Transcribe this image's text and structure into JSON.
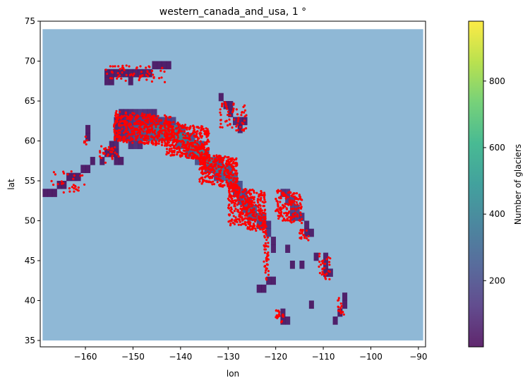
{
  "chart_data": {
    "type": "heatmap",
    "title": "western_canada_and_usa, 1 °",
    "xlabel": "lon",
    "ylabel": "lat",
    "xlim": [
      -169.5,
      -88.5
    ],
    "ylim": [
      34.2,
      75
    ],
    "xticks": [
      -160,
      -150,
      -140,
      -130,
      -120,
      -110,
      -100,
      -90
    ],
    "xtick_labels": [
      "−160",
      "−150",
      "−140",
      "−130",
      "−120",
      "−110",
      "−100",
      "−90"
    ],
    "yticks": [
      35,
      40,
      45,
      50,
      55,
      60,
      65,
      70,
      75
    ],
    "ytick_labels": [
      "35",
      "40",
      "45",
      "50",
      "55",
      "60",
      "65",
      "70",
      "75"
    ],
    "region_extent": {
      "lon": [
        -169,
        -89
      ],
      "lat": [
        35,
        74
      ]
    },
    "background_color": "#8fb8d6",
    "colorbar": {
      "label": "Number of glaciers",
      "range": [
        1,
        980
      ],
      "ticks": [
        200,
        400,
        600,
        800
      ],
      "tick_labels": [
        "200",
        "400",
        "600",
        "800"
      ],
      "colormap": [
        "#440154",
        "#472d7b",
        "#3b528b",
        "#2c728e",
        "#21918c",
        "#28ae80",
        "#5ec962",
        "#addc30",
        "#fde725"
      ]
    },
    "cells_description": "1-degree grid cells containing glaciers, colored by glacier count",
    "cells": [
      [
        -169,
        53,
        8
      ],
      [
        -168,
        53,
        8
      ],
      [
        -167,
        53,
        8
      ],
      [
        -166,
        54,
        8
      ],
      [
        -165,
        54,
        8
      ],
      [
        -164,
        55,
        10
      ],
      [
        -163,
        55,
        10
      ],
      [
        -162,
        55,
        10
      ],
      [
        -161,
        56,
        12
      ],
      [
        -160,
        56,
        12
      ],
      [
        -159,
        57,
        12
      ],
      [
        -160,
        60,
        10
      ],
      [
        -160,
        61,
        10
      ],
      [
        -157,
        57,
        15
      ],
      [
        -156,
        58,
        20
      ],
      [
        -155,
        58,
        25
      ],
      [
        -155,
        59,
        20
      ],
      [
        -154,
        57,
        15
      ],
      [
        -154,
        58,
        30
      ],
      [
        -153,
        57,
        10
      ],
      [
        -156,
        67,
        15
      ],
      [
        -155,
        67,
        15
      ],
      [
        -155,
        68,
        12
      ],
      [
        -154,
        68,
        12
      ],
      [
        -153,
        68,
        12
      ],
      [
        -152,
        68,
        12
      ],
      [
        -151,
        68,
        15
      ],
      [
        -150,
        68,
        20
      ],
      [
        -149,
        68,
        20
      ],
      [
        -148,
        68,
        25
      ],
      [
        -147,
        68,
        20
      ],
      [
        -146,
        69,
        15
      ],
      [
        -145,
        69,
        15
      ],
      [
        -144,
        69,
        15
      ],
      [
        -143,
        69,
        10
      ],
      [
        -151,
        67,
        8
      ],
      [
        -156,
        68,
        10
      ],
      [
        -154,
        59,
        40
      ],
      [
        -154,
        60,
        60
      ],
      [
        -154,
        61,
        50
      ],
      [
        -154,
        62,
        30
      ],
      [
        -153,
        60,
        70
      ],
      [
        -153,
        61,
        80
      ],
      [
        -153,
        62,
        60
      ],
      [
        -153,
        63,
        40
      ],
      [
        -152,
        60,
        90
      ],
      [
        -152,
        61,
        100
      ],
      [
        -152,
        62,
        80
      ],
      [
        -152,
        63,
        50
      ],
      [
        -151,
        59,
        60
      ],
      [
        -151,
        60,
        120
      ],
      [
        -151,
        61,
        150
      ],
      [
        -151,
        62,
        100
      ],
      [
        -151,
        63,
        60
      ],
      [
        -150,
        59,
        80
      ],
      [
        -150,
        60,
        160
      ],
      [
        -150,
        61,
        200
      ],
      [
        -150,
        62,
        120
      ],
      [
        -150,
        63,
        80
      ],
      [
        -149,
        59,
        60
      ],
      [
        -149,
        60,
        180
      ],
      [
        -149,
        61,
        250
      ],
      [
        -149,
        62,
        120
      ],
      [
        -149,
        63,
        100
      ],
      [
        -148,
        60,
        200
      ],
      [
        -148,
        61,
        260
      ],
      [
        -148,
        62,
        140
      ],
      [
        -148,
        63,
        90
      ],
      [
        -147,
        60,
        240
      ],
      [
        -147,
        61,
        300
      ],
      [
        -147,
        62,
        120
      ],
      [
        -147,
        63,
        80
      ],
      [
        -146,
        60,
        260
      ],
      [
        -146,
        61,
        320
      ],
      [
        -146,
        62,
        140
      ],
      [
        -146,
        63,
        70
      ],
      [
        -145,
        60,
        280
      ],
      [
        -145,
        61,
        350
      ],
      [
        -145,
        62,
        120
      ],
      [
        -144,
        60,
        300
      ],
      [
        -144,
        61,
        380
      ],
      [
        -144,
        62,
        140
      ],
      [
        -143,
        60,
        320
      ],
      [
        -143,
        61,
        400
      ],
      [
        -143,
        62,
        120
      ],
      [
        -142,
        60,
        340
      ],
      [
        -142,
        61,
        420
      ],
      [
        -142,
        62,
        140
      ],
      [
        -141,
        59,
        260
      ],
      [
        -141,
        60,
        420
      ],
      [
        -141,
        61,
        300
      ],
      [
        -140,
        59,
        280
      ],
      [
        -140,
        60,
        400
      ],
      [
        -140,
        61,
        200
      ],
      [
        -139,
        58,
        220
      ],
      [
        -139,
        59,
        380
      ],
      [
        -139,
        60,
        300
      ],
      [
        -138,
        58,
        260
      ],
      [
        -138,
        59,
        400
      ],
      [
        -138,
        60,
        220
      ],
      [
        -137,
        57,
        200
      ],
      [
        -137,
        58,
        380
      ],
      [
        -137,
        59,
        300
      ],
      [
        -136,
        57,
        250
      ],
      [
        -136,
        58,
        420
      ],
      [
        -136,
        59,
        200
      ],
      [
        -135,
        56,
        180
      ],
      [
        -135,
        57,
        350
      ],
      [
        -135,
        58,
        200
      ],
      [
        -134,
        56,
        200
      ],
      [
        -134,
        57,
        380
      ],
      [
        -133,
        55,
        160
      ],
      [
        -133,
        56,
        320
      ],
      [
        -133,
        57,
        200
      ],
      [
        -132,
        55,
        240
      ],
      [
        -132,
        56,
        360
      ],
      [
        -132,
        57,
        180
      ],
      [
        -131,
        55,
        260
      ],
      [
        -131,
        56,
        300
      ],
      [
        -130,
        54,
        220
      ],
      [
        -130,
        55,
        280
      ],
      [
        -130,
        56,
        200
      ],
      [
        -129,
        54,
        200
      ],
      [
        -129,
        55,
        240
      ],
      [
        -129,
        53,
        120
      ],
      [
        -128,
        52,
        160
      ],
      [
        -128,
        53,
        220
      ],
      [
        -128,
        54,
        180
      ],
      [
        -127,
        51,
        200
      ],
      [
        -127,
        52,
        260
      ],
      [
        -127,
        53,
        140
      ],
      [
        -126,
        50,
        220
      ],
      [
        -126,
        51,
        300
      ],
      [
        -126,
        52,
        160
      ],
      [
        -125,
        50,
        260
      ],
      [
        -125,
        51,
        220
      ],
      [
        -124,
        49,
        140
      ],
      [
        -124,
        50,
        240
      ],
      [
        -123,
        49,
        120
      ],
      [
        -123,
        50,
        160
      ],
      [
        -122,
        48,
        100
      ],
      [
        -122,
        49,
        80
      ],
      [
        -118,
        52,
        120
      ],
      [
        -118,
        53,
        100
      ],
      [
        -117,
        51,
        140
      ],
      [
        -117,
        52,
        160
      ],
      [
        -116,
        50,
        120
      ],
      [
        -116,
        51,
        140
      ],
      [
        -115,
        50,
        80
      ],
      [
        -117,
        50,
        100
      ],
      [
        -119,
        53,
        80
      ],
      [
        -131,
        64,
        30
      ],
      [
        -130,
        64,
        25
      ],
      [
        -132,
        65,
        15
      ],
      [
        -129,
        62,
        40
      ],
      [
        -128,
        62,
        30
      ],
      [
        -127,
        62,
        20
      ],
      [
        -130,
        63,
        25
      ],
      [
        -128,
        61,
        20
      ],
      [
        -118,
        46,
        20
      ],
      [
        -121,
        46,
        30
      ],
      [
        -121,
        47,
        25
      ],
      [
        -114,
        48,
        30
      ],
      [
        -114,
        49,
        25
      ],
      [
        -113,
        48,
        20
      ],
      [
        -110,
        44,
        40
      ],
      [
        -110,
        45,
        30
      ],
      [
        -109,
        43,
        30
      ],
      [
        -110,
        43,
        20
      ],
      [
        -117,
        44,
        15
      ],
      [
        -122,
        42,
        20
      ],
      [
        -121,
        42,
        15
      ],
      [
        -124,
        41,
        10
      ],
      [
        -123,
        41,
        10
      ],
      [
        -119,
        38,
        25
      ],
      [
        -118,
        37,
        30
      ],
      [
        -119,
        37,
        20
      ],
      [
        -106,
        40,
        15
      ],
      [
        -106,
        39,
        12
      ],
      [
        -107,
        38,
        10
      ],
      [
        -108,
        37,
        10
      ],
      [
        -113,
        39,
        8
      ],
      [
        -115,
        44,
        10
      ],
      [
        -112,
        45,
        12
      ]
    ],
    "points_description": "individual glacier locations plotted as red markers",
    "points_color": "#ff0000",
    "point_clusters": [
      {
        "lon": [
          -168,
          -160
        ],
        "lat": [
          53.2,
          56.5
        ],
        "count": 30
      },
      {
        "lon": [
          -160.5,
          -159.5
        ],
        "lat": [
          59.5,
          60.8
        ],
        "count": 6
      },
      {
        "lon": [
          -157,
          -153
        ],
        "lat": [
          57,
          59.5
        ],
        "count": 30
      },
      {
        "lon": [
          -156,
          -143
        ],
        "lat": [
          67.3,
          69.6
        ],
        "count": 60
      },
      {
        "lon": [
          -154,
          -142
        ],
        "lat": [
          59.3,
          63.8
        ],
        "count": 420
      },
      {
        "lon": [
          -143,
          -134
        ],
        "lat": [
          57.5,
          62.5
        ],
        "count": 380
      },
      {
        "lon": [
          -136,
          -128
        ],
        "lat": [
          54,
          58.5
        ],
        "count": 300
      },
      {
        "lon": [
          -130,
          -122
        ],
        "lat": [
          48.5,
          54.5
        ],
        "count": 360
      },
      {
        "lon": [
          -120,
          -114.5
        ],
        "lat": [
          49.5,
          54
        ],
        "count": 150
      },
      {
        "lon": [
          -132,
          -126
        ],
        "lat": [
          61,
          65
        ],
        "count": 60
      },
      {
        "lon": [
          -122.5,
          -121.5
        ],
        "lat": [
          42,
          49
        ],
        "count": 40
      },
      {
        "lon": [
          -115,
          -113
        ],
        "lat": [
          47.5,
          49
        ],
        "count": 20
      },
      {
        "lon": [
          -111,
          -108.5
        ],
        "lat": [
          42.5,
          46
        ],
        "count": 30
      },
      {
        "lon": [
          -120,
          -118
        ],
        "lat": [
          37,
          39
        ],
        "count": 20
      },
      {
        "lon": [
          -107,
          -105.5
        ],
        "lat": [
          38,
          40.5
        ],
        "count": 15
      }
    ]
  }
}
